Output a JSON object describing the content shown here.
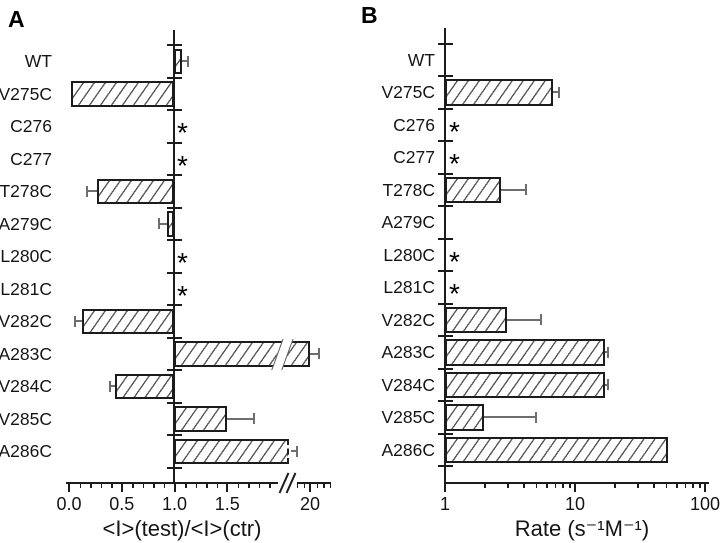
{
  "figure": {
    "panels": [
      {
        "letter": "A",
        "xlabel": "<I>(test)/<I>(ctr)"
      },
      {
        "letter": "B",
        "xlabel": "Rate (s⁻¹M⁻¹)"
      }
    ],
    "no_data_marker": "*"
  },
  "chart_data": [
    {
      "id": "A",
      "type": "bar",
      "orientation": "horizontal",
      "title": "",
      "xlabel": "<I>(test)/<I>(ctr)",
      "axis": {
        "type": "linear_with_break",
        "tick_values": [
          0,
          0.5,
          1.0,
          1.5,
          20
        ],
        "tick_labels": [
          "0.0",
          "0.5",
          "1.0",
          "1.5",
          "20"
        ],
        "minor_tick_step": 0.1,
        "break_between": [
          1.9,
          19.5
        ],
        "baseline": 1.0,
        "grid": false
      },
      "categories": [
        "WT",
        "V275C",
        "C276",
        "C277",
        "T278C",
        "A279C",
        "L280C",
        "L281C",
        "V282C",
        "A283C",
        "V284C",
        "V285C",
        "A286C"
      ],
      "bars": [
        {
          "label": "WT",
          "value": 1.07,
          "err_to": 1.13
        },
        {
          "label": "V275C",
          "value": 0.02
        },
        {
          "label": "C276",
          "no_data": true,
          "asterisk": "*"
        },
        {
          "label": "C277",
          "no_data": true,
          "asterisk": "*"
        },
        {
          "label": "T278C",
          "value": 0.27,
          "err_to": 0.17
        },
        {
          "label": "A279C",
          "value": 0.93,
          "err_to": 0.85
        },
        {
          "label": "L280C",
          "no_data": true,
          "asterisk": "*"
        },
        {
          "label": "L281C",
          "no_data": true,
          "asterisk": "*"
        },
        {
          "label": "V282C",
          "value": 0.12,
          "err_to": 0.06
        },
        {
          "label": "A283C",
          "value": 20,
          "err_to": 20.7,
          "bar_break": true
        },
        {
          "label": "V284C",
          "value": 0.44,
          "err_to": 0.39
        },
        {
          "label": "V285C",
          "value": 1.5,
          "err_to": 1.75
        },
        {
          "label": "A286C",
          "value": 19,
          "err_to": 19,
          "clipped_at_break": true
        }
      ]
    },
    {
      "id": "B",
      "type": "bar",
      "orientation": "horizontal",
      "title": "",
      "xlabel": "Rate (s⁻¹M⁻¹)",
      "axis": {
        "type": "log",
        "tick_values": [
          1,
          10,
          100
        ],
        "tick_labels": [
          "1",
          "10",
          "100"
        ],
        "minor_ticks": [
          2,
          3,
          4,
          5,
          6,
          7,
          8,
          9,
          20,
          30,
          40,
          50,
          60,
          70,
          80,
          90
        ],
        "baseline": 1,
        "grid": false
      },
      "categories": [
        "WT",
        "V275C",
        "C276",
        "C277",
        "T278C",
        "A279C",
        "L280C",
        "L281C",
        "V282C",
        "A283C",
        "V284C",
        "V285C",
        "A286C"
      ],
      "bars": [
        {
          "label": "WT"
        },
        {
          "label": "V275C",
          "value": 6.8,
          "err_to": 7.5
        },
        {
          "label": "C276",
          "no_data": true,
          "asterisk": "*"
        },
        {
          "label": "C277",
          "no_data": true,
          "asterisk": "*"
        },
        {
          "label": "T278C",
          "value": 2.7,
          "err_to": 4.2
        },
        {
          "label": "A279C"
        },
        {
          "label": "L280C",
          "no_data": true,
          "asterisk": "*"
        },
        {
          "label": "L281C",
          "no_data": true,
          "asterisk": "*"
        },
        {
          "label": "V282C",
          "value": 3.0,
          "err_to": 5.5
        },
        {
          "label": "A283C",
          "value": 17,
          "err_to": 18
        },
        {
          "label": "V284C",
          "value": 17,
          "err_to": 18
        },
        {
          "label": "V285C",
          "value": 2.0,
          "err_to": 5.0
        },
        {
          "label": "A286C",
          "value": 52
        }
      ]
    }
  ]
}
